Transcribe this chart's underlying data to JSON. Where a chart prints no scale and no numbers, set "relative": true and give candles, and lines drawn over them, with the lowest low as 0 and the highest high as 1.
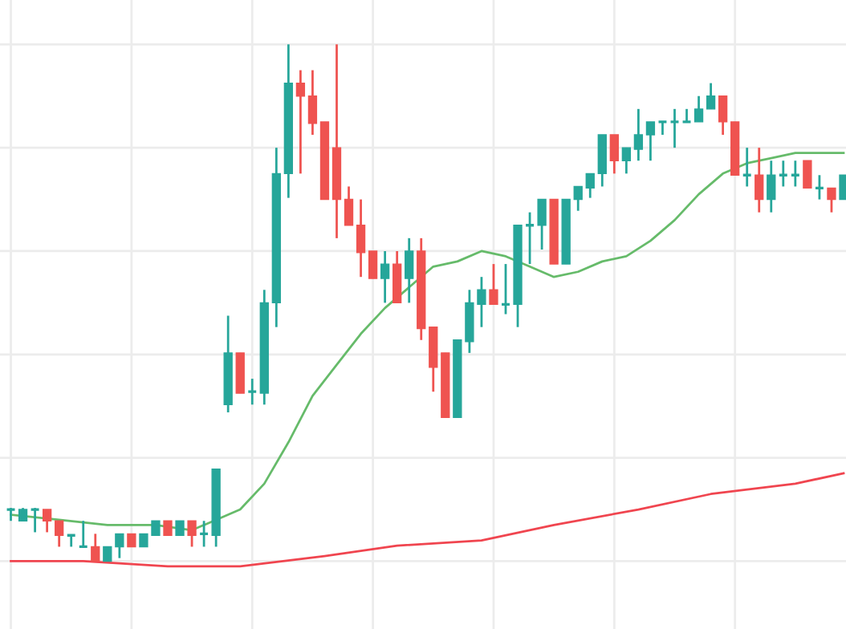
{
  "chart_data": {
    "type": "candlestick",
    "relative": true,
    "grid": true,
    "categories": [
      null,
      null,
      null,
      null,
      null,
      null,
      null,
      null,
      null,
      null,
      null,
      null,
      null,
      null,
      null,
      null,
      null,
      null,
      null,
      null,
      null,
      null,
      null,
      null,
      null,
      null,
      null,
      null,
      null,
      null,
      null,
      null,
      null,
      null,
      null,
      null,
      null,
      null,
      null,
      null,
      null,
      null,
      null,
      null,
      null,
      null,
      null,
      null,
      null,
      null,
      null,
      null,
      null,
      null,
      null,
      null,
      null,
      null,
      null,
      null,
      null,
      null,
      null,
      null,
      null,
      null,
      null,
      null,
      null,
      null
    ],
    "ohlc": [
      [
        0.1,
        0.103,
        0.078,
        0.1
      ],
      [
        0.078,
        0.103,
        0.078,
        0.1
      ],
      [
        0.1,
        0.103,
        0.056,
        0.1
      ],
      [
        0.1,
        0.1,
        0.056,
        0.078
      ],
      [
        0.078,
        0.078,
        0.028,
        0.05
      ],
      [
        0.05,
        0.05,
        0.028,
        0.05
      ],
      [
        0.028,
        0.078,
        0.028,
        0.028
      ],
      [
        0.028,
        0.053,
        0,
        0
      ],
      [
        0,
        0.028,
        0,
        0.028
      ],
      [
        0.028,
        0.053,
        0.006,
        0.053
      ],
      [
        0.053,
        0.053,
        0.028,
        0.028
      ],
      [
        0.028,
        0.053,
        0.028,
        0.053
      ],
      [
        0.05,
        0.078,
        0.05,
        0.078
      ],
      [
        0.078,
        0.078,
        0.05,
        0.05
      ],
      [
        0.05,
        0.078,
        0.05,
        0.078
      ],
      [
        0.078,
        0.078,
        0.028,
        0.05
      ],
      [
        0.053,
        0.078,
        0.028,
        0.053
      ],
      [
        0.05,
        0.178,
        0.028,
        0.178
      ],
      [
        0.303,
        0.475,
        0.288,
        0.403
      ],
      [
        0.403,
        0.403,
        0.325,
        0.325
      ],
      [
        0.328,
        0.353,
        0.303,
        0.328
      ],
      [
        0.325,
        0.525,
        0.303,
        0.5
      ],
      [
        0.5,
        0.8,
        0.453,
        0.75
      ],
      [
        0.75,
        1.0,
        0.703,
        0.925
      ],
      [
        0.925,
        0.95,
        0.75,
        0.9
      ],
      [
        0.9,
        0.95,
        0.825,
        0.847
      ],
      [
        0.85,
        0.85,
        0.7,
        0.7
      ],
      [
        0.8,
        1.0,
        0.625,
        0.7
      ],
      [
        0.7,
        0.725,
        0.65,
        0.65
      ],
      [
        0.65,
        0.7,
        0.55,
        0.597
      ],
      [
        0.6,
        0.6,
        0.547,
        0.547
      ],
      [
        0.547,
        0.6,
        0.5,
        0.575
      ],
      [
        0.575,
        0.6,
        0.5,
        0.5
      ],
      [
        0.547,
        0.625,
        0.5,
        0.6
      ],
      [
        0.6,
        0.625,
        0.428,
        0.45
      ],
      [
        0.453,
        0.453,
        0.328,
        0.375
      ],
      [
        0.403,
        0.403,
        0.278,
        0.278
      ],
      [
        0.278,
        0.428,
        0.278,
        0.428
      ],
      [
        0.425,
        0.525,
        0.403,
        0.5
      ],
      [
        0.497,
        0.55,
        0.453,
        0.525
      ],
      [
        0.525,
        0.575,
        0.497,
        0.497
      ],
      [
        0.497,
        0.575,
        0.478,
        0.497
      ],
      [
        0.497,
        0.65,
        0.453,
        0.65
      ],
      [
        0.65,
        0.675,
        0.575,
        0.65
      ],
      [
        0.65,
        0.7,
        0.603,
        0.7
      ],
      [
        0.7,
        0.7,
        0.575,
        0.575
      ],
      [
        0.575,
        0.7,
        0.575,
        0.7
      ],
      [
        0.7,
        0.725,
        0.678,
        0.725
      ],
      [
        0.722,
        0.75,
        0.703,
        0.75
      ],
      [
        0.75,
        0.825,
        0.725,
        0.825
      ],
      [
        0.825,
        0.825,
        0.75,
        0.775
      ],
      [
        0.775,
        0.8,
        0.75,
        0.8
      ],
      [
        0.797,
        0.875,
        0.775,
        0.825
      ],
      [
        0.825,
        0.85,
        0.775,
        0.85
      ],
      [
        0.85,
        0.85,
        0.825,
        0.85
      ],
      [
        0.85,
        0.875,
        0.8,
        0.85
      ],
      [
        0.85,
        0.875,
        0.85,
        0.85
      ],
      [
        0.85,
        0.9,
        0.85,
        0.875
      ],
      [
        0.875,
        0.925,
        0.875,
        0.9
      ],
      [
        0.9,
        0.9,
        0.825,
        0.85
      ],
      [
        0.85,
        0.85,
        0.747,
        0.747
      ],
      [
        0.747,
        0.8,
        0.725,
        0.747
      ],
      [
        0.747,
        0.8,
        0.675,
        0.7
      ],
      [
        0.7,
        0.775,
        0.675,
        0.747
      ],
      [
        0.747,
        0.775,
        0.725,
        0.747
      ],
      [
        0.747,
        0.775,
        0.725,
        0.747
      ],
      [
        0.775,
        0.775,
        0.722,
        0.722
      ],
      [
        0.722,
        0.747,
        0.7,
        0.722
      ],
      [
        0.722,
        0.722,
        0.675,
        0.7
      ],
      [
        0.7,
        0.747,
        0.7,
        0.747
      ]
    ],
    "colors": [
      "#26a69a",
      "#26a69a",
      "#26a69a",
      "#ef5350",
      "#ef5350",
      "#26a69a",
      "#26a69a",
      "#ef5350",
      "#26a69a",
      "#26a69a",
      "#ef5350",
      "#26a69a",
      "#26a69a",
      "#ef5350",
      "#26a69a",
      "#ef5350",
      "#26a69a",
      "#26a69a",
      "#26a69a",
      "#ef5350",
      "#26a69a",
      "#26a69a",
      "#26a69a",
      "#26a69a",
      "#ef5350",
      "#ef5350",
      "#ef5350",
      "#ef5350",
      "#ef5350",
      "#ef5350",
      "#ef5350",
      "#26a69a",
      "#ef5350",
      "#26a69a",
      "#ef5350",
      "#ef5350",
      "#ef5350",
      "#26a69a",
      "#26a69a",
      "#26a69a",
      "#ef5350",
      "#26a69a",
      "#26a69a",
      "#26a69a",
      "#26a69a",
      "#ef5350",
      "#26a69a",
      "#26a69a",
      "#26a69a",
      "#26a69a",
      "#ef5350",
      "#26a69a",
      "#26a69a",
      "#26a69a",
      "#26a69a",
      "#26a69a",
      "#26a69a",
      "#26a69a",
      "#26a69a",
      "#ef5350",
      "#ef5350",
      "#26a69a",
      "#ef5350",
      "#26a69a",
      "#26a69a",
      "#26a69a",
      "#ef5350",
      "#26a69a",
      "#ef5350",
      "#26a69a"
    ],
    "series": [
      {
        "type": "line",
        "color": "#66bb6a",
        "values": [
          0.09,
          null,
          null,
          null,
          0.08,
          null,
          null,
          null,
          0.07,
          null,
          null,
          null,
          0.07,
          null,
          null,
          0.06,
          null,
          0.08,
          null,
          0.1,
          null,
          0.15,
          null,
          0.23,
          null,
          0.32,
          null,
          0.38,
          null,
          0.44,
          null,
          0.49,
          null,
          0.53,
          null,
          0.57,
          null,
          0.58,
          null,
          0.6,
          null,
          0.59,
          null,
          0.57,
          null,
          0.55,
          null,
          0.56,
          null,
          0.58,
          null,
          0.59,
          null,
          0.62,
          null,
          0.66,
          null,
          0.71,
          null,
          0.75,
          null,
          0.77,
          null,
          0.78,
          null,
          0.79,
          null,
          0.79,
          null,
          0.79
        ]
      },
      {
        "type": "line",
        "color": "#f0454f",
        "values": [
          0.0,
          null,
          null,
          null,
          null,
          null,
          0.0,
          null,
          null,
          null,
          null,
          null,
          null,
          -0.01,
          null,
          null,
          null,
          null,
          null,
          -0.01,
          null,
          null,
          null,
          null,
          null,
          null,
          0.01,
          null,
          null,
          null,
          null,
          null,
          0.03,
          null,
          null,
          null,
          null,
          null,
          null,
          0.04,
          null,
          null,
          null,
          null,
          null,
          0.07,
          null,
          null,
          null,
          null,
          null,
          null,
          0.1,
          null,
          null,
          null,
          null,
          null,
          0.13,
          null,
          null,
          null,
          null,
          null,
          null,
          0.15,
          null,
          null,
          null,
          0.17
        ]
      }
    ]
  }
}
